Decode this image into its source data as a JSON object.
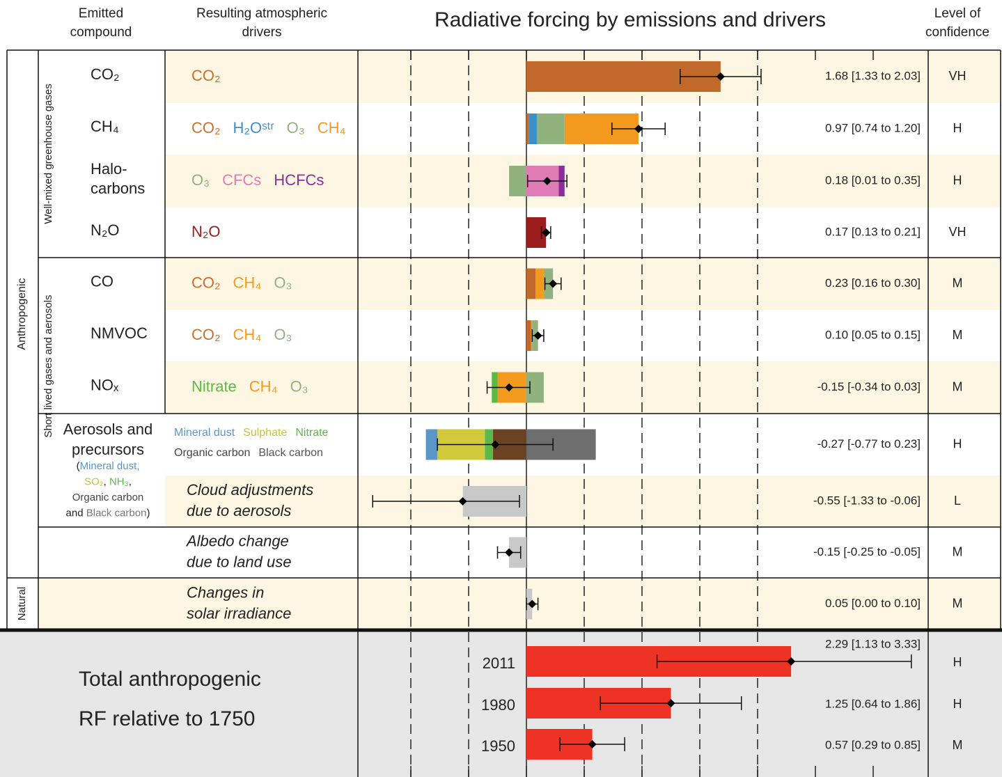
{
  "chart_data": {
    "type": "bar",
    "orientation": "horizontal",
    "title": "Radiative forcing by emissions and drivers",
    "headers": {
      "emitted": [
        "Emitted",
        "compound"
      ],
      "drivers": [
        "Resulting atmospheric",
        "drivers"
      ],
      "confidence": [
        "Level of",
        "confidence"
      ]
    },
    "groups": [
      "Well-mixed greenhouse gases",
      "Short lived gases and aerosols",
      "Anthropogenic",
      "Natural"
    ],
    "xlim": [
      -1.5,
      3.5
    ],
    "xticks": [
      -1,
      -0.5,
      0,
      0.5,
      1,
      1.5,
      2,
      2.5,
      3
    ],
    "grid_lines": [
      -1,
      -0.5,
      0.5,
      1,
      1.5,
      2
    ],
    "zero_line": true,
    "positive_label_color": "#e8403a",
    "negative_label_color": "#3a4ba0",
    "rows": [
      {
        "emitted": [
          "CO₂"
        ],
        "drivers": [
          [
            {
              "text": "CO₂",
              "color": "#c8702e"
            }
          ]
        ],
        "components": [
          {
            "value": 1.68,
            "color": "#c0692b"
          }
        ],
        "value": 1.68,
        "low": 1.33,
        "high": 2.03,
        "value_label": "1.68 [1.33 to 2.03]",
        "confidence": "VH"
      },
      {
        "emitted": [
          "CH₄"
        ],
        "drivers": [
          [
            {
              "text": "CO₂",
              "color": "#c8702e"
            },
            {
              "text": "H₂Oˢᵗʳ",
              "color": "#3b8fc7"
            },
            {
              "text": "O₃",
              "color": "#8fb27e"
            },
            {
              "text": "CH₄",
              "color": "#f39a1e"
            }
          ]
        ],
        "components": [
          {
            "value": 0.02,
            "color": "#c0692b"
          },
          {
            "value": 0.07,
            "color": "#3b8fc7"
          },
          {
            "value": 0.24,
            "color": "#8fb27e"
          },
          {
            "value": 0.64,
            "color": "#f39a1e"
          }
        ],
        "value": 0.97,
        "low": 0.74,
        "high": 1.2,
        "value_label": "0.97 [0.74 to 1.20]",
        "confidence": "H"
      },
      {
        "emitted": [
          "Halo-",
          "carbons"
        ],
        "drivers": [
          [
            {
              "text": "O₃",
              "color": "#8fb27e"
            },
            {
              "text": "CFCs",
              "color": "#e07bb6"
            },
            {
              "text": "HCFCs",
              "color": "#8a2e9b"
            }
          ]
        ],
        "components": [
          {
            "value": -0.15,
            "color": "#8fb27e"
          },
          {
            "value": 0.28,
            "color": "#e07bb6"
          },
          {
            "value": 0.05,
            "color": "#8a2e9b"
          }
        ],
        "value": 0.18,
        "low": 0.01,
        "high": 0.35,
        "value_label": "0.18 [0.01 to 0.35]",
        "confidence": "H"
      },
      {
        "emitted": [
          "N₂O"
        ],
        "drivers": [
          [
            {
              "text": "N₂O",
              "color": "#9b1c1c"
            }
          ]
        ],
        "components": [
          {
            "value": 0.17,
            "color": "#9b1c1c"
          }
        ],
        "value": 0.17,
        "low": 0.13,
        "high": 0.21,
        "value_label": "0.17 [0.13 to 0.21]",
        "confidence": "VH"
      },
      {
        "emitted": [
          "CO"
        ],
        "drivers": [
          [
            {
              "text": "CO₂",
              "color": "#c8702e"
            },
            {
              "text": "CH₄",
              "color": "#f39a1e"
            },
            {
              "text": "O₃",
              "color": "#8fb27e"
            }
          ]
        ],
        "components": [
          {
            "value": 0.08,
            "color": "#c0692b"
          },
          {
            "value": 0.07,
            "color": "#f39a1e"
          },
          {
            "value": 0.08,
            "color": "#8fb27e"
          }
        ],
        "value": 0.23,
        "low": 0.16,
        "high": 0.3,
        "value_label": "0.23 [0.16 to 0.30]",
        "confidence": "M"
      },
      {
        "emitted": [
          "NMVOC"
        ],
        "drivers": [
          [
            {
              "text": "CO₂",
              "color": "#c8702e"
            },
            {
              "text": "CH₄",
              "color": "#f39a1e"
            },
            {
              "text": "O₃",
              "color": "#8fb27e"
            }
          ]
        ],
        "components": [
          {
            "value": 0.04,
            "color": "#c0692b"
          },
          {
            "value": 0.01,
            "color": "#f39a1e"
          },
          {
            "value": 0.05,
            "color": "#8fb27e"
          }
        ],
        "value": 0.1,
        "low": 0.05,
        "high": 0.15,
        "value_label": "0.10 [0.05 to 0.15]",
        "confidence": "M"
      },
      {
        "emitted": [
          "NOₓ"
        ],
        "drivers": [
          [
            {
              "text": "Nitrate",
              "color": "#5cb947"
            },
            {
              "text": "CH₄",
              "color": "#f39a1e"
            },
            {
              "text": "O₃",
              "color": "#8fb27e"
            }
          ]
        ],
        "components": [
          {
            "value": -0.25,
            "color": "#f39a1e"
          },
          {
            "value": -0.05,
            "color": "#5cb947"
          },
          {
            "value": 0.15,
            "color": "#8fb27e"
          }
        ],
        "value": -0.15,
        "low": -0.34,
        "high": 0.03,
        "value_label": "-0.15 [-0.34 to 0.03]",
        "confidence": "M"
      },
      {
        "emitted": [
          "Aerosols and",
          "precursors"
        ],
        "emitted_note": [
          [
            {
              "text": "(",
              "color": "#222"
            },
            {
              "text": "Mineral dust,",
              "color": "#5b96c8"
            }
          ],
          [
            {
              "text": "SO₂",
              "color": "#c9c232"
            },
            {
              "text": ", ",
              "color": "#222"
            },
            {
              "text": "NH₃",
              "color": "#5cb947"
            },
            {
              "text": ",",
              "color": "#222"
            }
          ],
          [
            {
              "text": "Organic carbon",
              "color": "#444"
            }
          ],
          [
            {
              "text": "and ",
              "color": "#222"
            },
            {
              "text": "Black carbon",
              "color": "#777"
            },
            {
              "text": ")",
              "color": "#222"
            }
          ]
        ],
        "drivers": [
          [
            {
              "text": "Mineral dust",
              "color": "#5b96c8"
            },
            {
              "text": "Sulphate",
              "color": "#c9c232"
            },
            {
              "text": "Nitrate",
              "color": "#5cb947"
            }
          ],
          [
            {
              "text": "Organic carbon",
              "color": "#444"
            },
            {
              "text": "Black carbon",
              "color": "#555"
            }
          ]
        ],
        "components": [
          {
            "value": -0.29,
            "color": "#6b4322"
          },
          {
            "value": -0.07,
            "color": "#5cb947"
          },
          {
            "value": -0.41,
            "color": "#d0c93a"
          },
          {
            "value": -0.1,
            "color": "#5b96c8"
          },
          {
            "value": 0.6,
            "color": "#6e6e6e"
          }
        ],
        "value": -0.27,
        "low": -0.77,
        "high": 0.23,
        "value_label": "-0.27 [-0.77 to 0.23]",
        "confidence": "H"
      },
      {
        "emitted": [],
        "italic": true,
        "drivers": [
          [
            {
              "text": "Cloud adjustments",
              "color": "#222"
            }
          ],
          [
            {
              "text": "due to aerosols",
              "color": "#222"
            }
          ]
        ],
        "components": [
          {
            "value": -0.55,
            "color": "#c8c8c8"
          }
        ],
        "value": -0.55,
        "low": -1.33,
        "high": -0.06,
        "value_label": "-0.55 [-1.33 to -0.06]",
        "confidence": "L"
      },
      {
        "emitted": [],
        "italic": true,
        "drivers": [
          [
            {
              "text": "Albedo change",
              "color": "#222"
            }
          ],
          [
            {
              "text": "due to land use",
              "color": "#222"
            }
          ]
        ],
        "components": [
          {
            "value": -0.15,
            "color": "#c8c8c8"
          }
        ],
        "value": -0.15,
        "low": -0.25,
        "high": -0.05,
        "value_label": "-0.15 [-0.25 to -0.05]",
        "confidence": "M"
      },
      {
        "emitted": [],
        "italic": true,
        "drivers": [
          [
            {
              "text": "Changes in",
              "color": "#222"
            }
          ],
          [
            {
              "text": "solar irradiance",
              "color": "#222"
            }
          ]
        ],
        "components": [
          {
            "value": 0.05,
            "color": "#c8c8c8"
          }
        ],
        "value": 0.05,
        "low": 0.0,
        "high": 0.1,
        "value_label": "0.05 [0.00 to 0.10]",
        "confidence": "M"
      }
    ],
    "total": {
      "label": [
        "Total anthropogenic",
        "RF relative to 1750"
      ],
      "color": "#ee3224",
      "rows": [
        {
          "year": "2011",
          "value": 2.29,
          "low": 1.13,
          "high": 3.33,
          "value_label": "2.29 [1.13 to 3.33]",
          "confidence": "H"
        },
        {
          "year": "1980",
          "value": 1.25,
          "low": 0.64,
          "high": 1.86,
          "value_label": "1.25 [0.64 to 1.86]",
          "confidence": "H"
        },
        {
          "year": "1950",
          "value": 0.57,
          "low": 0.29,
          "high": 0.85,
          "value_label": "0.57 [0.29 to 0.85]",
          "confidence": "M"
        }
      ]
    }
  }
}
